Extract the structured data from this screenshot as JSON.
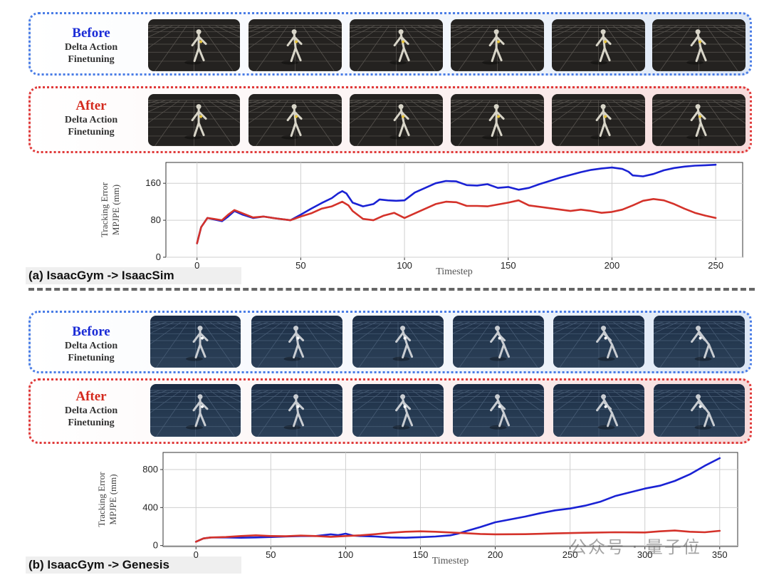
{
  "colors": {
    "before": "#1a22d4",
    "after": "#d4322a",
    "blue_box": "#4a7de6",
    "red_box": "#e03a3a"
  },
  "panels": {
    "a": {
      "caption": "(a) IsaacGym -> IsaacSim",
      "before_label": {
        "title": "Before",
        "line1": "Delta Action",
        "line2": "Finetuning"
      },
      "after_label": {
        "title": "After",
        "line1": "Delta Action",
        "line2": "Finetuning"
      }
    },
    "b": {
      "caption": "(b) IsaacGym -> Genesis",
      "before_label": {
        "title": "Before",
        "line1": "Delta Action",
        "line2": "Finetuning"
      },
      "after_label": {
        "title": "After",
        "line1": "Delta Action",
        "line2": "Finetuning"
      }
    }
  },
  "watermark": "公众号 · 量子位",
  "chart_data": [
    {
      "type": "line",
      "title": "",
      "xlabel": "Timestep",
      "ylabel": [
        "Tracking Error",
        "MPJPE (mm)"
      ],
      "xlim": [
        -15,
        263
      ],
      "ylim": [
        0,
        205
      ],
      "xticks": [
        0,
        50,
        100,
        150,
        200,
        250
      ],
      "yticks": [
        0,
        80,
        160
      ],
      "grid": true,
      "series": [
        {
          "name": "Before",
          "color": "#1a22d4",
          "x": [
            0,
            2,
            5,
            8,
            12,
            15,
            18,
            22,
            27,
            32,
            38,
            45,
            50,
            55,
            60,
            65,
            68,
            70,
            72,
            75,
            80,
            85,
            88,
            92,
            96,
            100,
            105,
            110,
            115,
            120,
            125,
            130,
            135,
            140,
            145,
            150,
            155,
            160,
            165,
            170,
            175,
            180,
            185,
            190,
            195,
            200,
            205,
            208,
            210,
            215,
            220,
            225,
            230,
            235,
            240,
            245,
            250
          ],
          "y": [
            30,
            65,
            85,
            82,
            78,
            88,
            100,
            92,
            85,
            88,
            84,
            80,
            92,
            105,
            117,
            128,
            138,
            143,
            138,
            118,
            110,
            115,
            125,
            123,
            122,
            123,
            140,
            150,
            160,
            165,
            164,
            156,
            155,
            158,
            150,
            152,
            146,
            150,
            158,
            165,
            172,
            178,
            184,
            189,
            192,
            194,
            191,
            185,
            177,
            175,
            180,
            188,
            193,
            196,
            198,
            199,
            200
          ]
        },
        {
          "name": "After",
          "color": "#d4322a",
          "x": [
            0,
            2,
            5,
            8,
            12,
            15,
            18,
            22,
            27,
            32,
            38,
            45,
            50,
            55,
            60,
            65,
            70,
            73,
            75,
            80,
            85,
            90,
            95,
            100,
            105,
            110,
            115,
            120,
            125,
            130,
            135,
            140,
            145,
            150,
            155,
            160,
            170,
            180,
            185,
            190,
            195,
            200,
            205,
            210,
            215,
            220,
            225,
            230,
            235,
            240,
            245,
            250
          ],
          "y": [
            30,
            65,
            85,
            83,
            80,
            92,
            102,
            95,
            86,
            88,
            84,
            80,
            88,
            95,
            105,
            110,
            120,
            112,
            100,
            83,
            80,
            90,
            96,
            85,
            95,
            105,
            115,
            120,
            119,
            111,
            111,
            110,
            114,
            118,
            123,
            112,
            106,
            100,
            103,
            100,
            96,
            98,
            103,
            112,
            122,
            126,
            123,
            115,
            105,
            96,
            90,
            85
          ]
        }
      ]
    },
    {
      "type": "line",
      "title": "",
      "xlabel": "Timestep",
      "ylabel": [
        "Tracking Error",
        "MPJPE (mm)"
      ],
      "xlim": [
        -22,
        362
      ],
      "ylim": [
        -10,
        980
      ],
      "xticks": [
        0,
        50,
        100,
        150,
        200,
        250,
        300,
        350
      ],
      "yticks": [
        0,
        400,
        800
      ],
      "grid": true,
      "series": [
        {
          "name": "Before",
          "color": "#1a22d4",
          "x": [
            0,
            5,
            10,
            20,
            30,
            40,
            50,
            60,
            70,
            80,
            90,
            95,
            100,
            105,
            110,
            120,
            130,
            140,
            150,
            160,
            170,
            175,
            180,
            190,
            200,
            210,
            220,
            230,
            240,
            250,
            260,
            270,
            280,
            290,
            300,
            310,
            320,
            330,
            340,
            350
          ],
          "y": [
            40,
            75,
            85,
            85,
            82,
            85,
            90,
            95,
            100,
            100,
            118,
            110,
            125,
            105,
            100,
            95,
            85,
            82,
            88,
            95,
            108,
            125,
            150,
            195,
            245,
            275,
            305,
            340,
            370,
            390,
            420,
            460,
            520,
            560,
            600,
            630,
            680,
            750,
            840,
            920
          ]
        },
        {
          "name": "After",
          "color": "#d4322a",
          "x": [
            0,
            5,
            10,
            20,
            30,
            40,
            50,
            60,
            70,
            80,
            90,
            100,
            110,
            120,
            130,
            140,
            150,
            160,
            170,
            180,
            190,
            200,
            220,
            240,
            260,
            280,
            300,
            310,
            320,
            330,
            340,
            350
          ],
          "y": [
            40,
            75,
            85,
            90,
            100,
            108,
            100,
            98,
            105,
            100,
            92,
            100,
            108,
            120,
            135,
            145,
            150,
            145,
            138,
            130,
            122,
            118,
            120,
            128,
            135,
            140,
            138,
            150,
            158,
            145,
            140,
            155
          ]
        }
      ]
    }
  ]
}
